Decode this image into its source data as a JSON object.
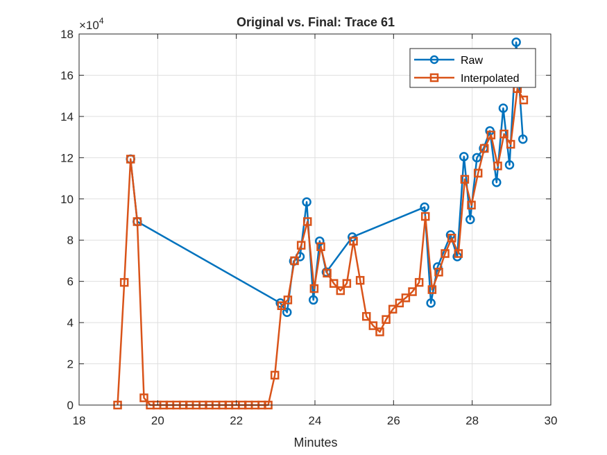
{
  "chart_data": {
    "type": "line",
    "title": "Original vs. Final: Trace 61",
    "xlabel": "Minutes",
    "ylabel": "",
    "y_exponent_label": "×10",
    "y_exponent_power": "4",
    "xlim": [
      18,
      30
    ],
    "ylim": [
      0,
      18
    ],
    "xticks": [
      18,
      20,
      22,
      24,
      26,
      28,
      30
    ],
    "yticks": [
      0,
      2,
      4,
      6,
      8,
      10,
      12,
      14,
      16,
      18
    ],
    "xtick_labels": [
      "18",
      "20",
      "22",
      "24",
      "26",
      "28",
      "30"
    ],
    "ytick_labels": [
      "0",
      "2",
      "4",
      "6",
      "8",
      "10",
      "12",
      "14",
      "16",
      "18"
    ],
    "grid": true,
    "legend_position": "top-right",
    "series": [
      {
        "name": "Raw",
        "color": "#0072BD",
        "marker": "circle",
        "x": [
          19.31,
          19.48,
          23.12,
          23.29,
          23.46,
          23.62,
          23.79,
          23.96,
          24.12,
          24.29,
          24.95,
          26.79,
          26.95,
          27.12,
          27.45,
          27.62,
          27.79,
          27.95,
          28.12,
          28.29,
          28.45,
          28.62,
          28.79,
          28.95,
          29.12,
          29.29
        ],
        "y": [
          11.93,
          8.9,
          4.95,
          4.5,
          6.98,
          7.2,
          9.85,
          5.1,
          7.95,
          6.45,
          8.15,
          9.6,
          4.95,
          6.7,
          8.25,
          7.2,
          12.05,
          9.0,
          12.0,
          12.45,
          13.3,
          10.8,
          14.4,
          11.65,
          17.6,
          12.9
        ]
      },
      {
        "name": "Interpolated",
        "color": "#D95319",
        "marker": "square",
        "x": [
          18.98,
          19.15,
          19.31,
          19.48,
          19.65,
          19.81,
          19.98,
          20.15,
          20.31,
          20.48,
          20.65,
          20.81,
          20.98,
          21.15,
          21.31,
          21.48,
          21.65,
          21.81,
          21.98,
          22.15,
          22.31,
          22.48,
          22.65,
          22.81,
          22.98,
          23.15,
          23.31,
          23.48,
          23.65,
          23.81,
          23.98,
          24.15,
          24.31,
          24.48,
          24.65,
          24.81,
          24.98,
          25.15,
          25.31,
          25.48,
          25.65,
          25.81,
          25.98,
          26.15,
          26.31,
          26.48,
          26.65,
          26.81,
          26.98,
          27.15,
          27.31,
          27.48,
          27.65,
          27.81,
          27.98,
          28.15,
          28.31,
          28.48,
          28.65,
          28.81,
          28.98,
          29.15,
          29.31
        ],
        "y": [
          0.0,
          5.95,
          11.93,
          8.9,
          0.35,
          0.0,
          0.0,
          0.0,
          0.0,
          0.0,
          0.0,
          0.0,
          0.0,
          0.0,
          0.0,
          0.0,
          0.0,
          0.0,
          0.0,
          0.0,
          0.0,
          0.0,
          0.0,
          0.0,
          1.45,
          4.82,
          5.1,
          7.0,
          7.75,
          8.9,
          5.65,
          7.68,
          6.4,
          5.9,
          5.55,
          5.9,
          7.95,
          6.05,
          4.3,
          3.85,
          3.55,
          4.15,
          4.65,
          4.95,
          5.2,
          5.5,
          5.95,
          9.15,
          5.6,
          6.45,
          7.35,
          8.1,
          7.35,
          10.95,
          9.7,
          11.25,
          12.45,
          13.1,
          11.6,
          13.15,
          12.65,
          15.35,
          14.8
        ]
      }
    ]
  }
}
